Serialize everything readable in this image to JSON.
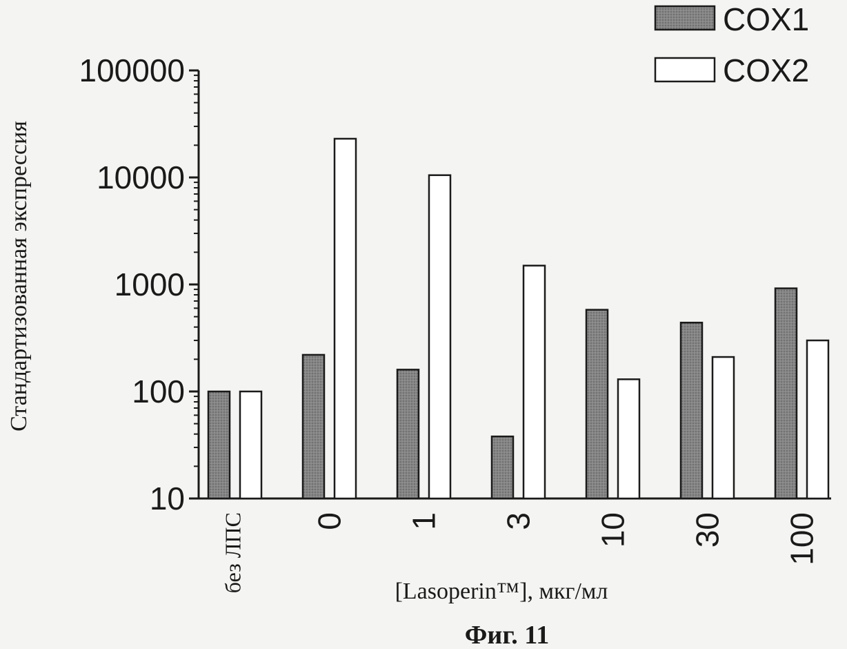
{
  "chart_data": {
    "type": "bar",
    "title": "",
    "xlabel": "[Lasoperin™], мкг/мл",
    "ylabel": "Стандартизованная экспрессия",
    "yscale": "log",
    "ylim": [
      10,
      100000
    ],
    "yticks": [
      "10",
      "100",
      "1000",
      "10000",
      "100000"
    ],
    "categories": [
      "без ЛПС",
      "0",
      "1",
      "3",
      "10",
      "30",
      "100"
    ],
    "series": [
      {
        "name": "COX1",
        "values": [
          100,
          220,
          160,
          38,
          580,
          440,
          920
        ],
        "fill": "#7a7a7a"
      },
      {
        "name": "COX2",
        "values": [
          100,
          23000,
          10500,
          1500,
          130,
          210,
          300
        ],
        "fill": "#ffffff"
      }
    ],
    "legend_position": "top-right",
    "grid": false
  },
  "caption": "Фиг. 11"
}
